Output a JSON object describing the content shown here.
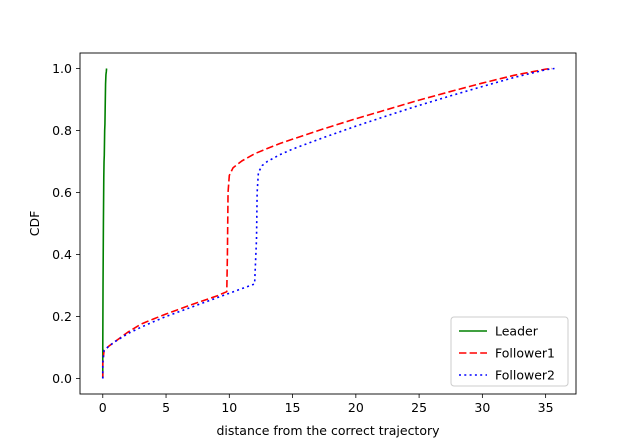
{
  "chart_data": {
    "type": "line",
    "title": "",
    "xlabel": "distance from the correct trajectory",
    "ylabel": "CDF",
    "xlim": [
      -1.8,
      37.4
    ],
    "ylim": [
      -0.05,
      1.05
    ],
    "xticks": [
      0,
      5,
      10,
      15,
      20,
      25,
      30,
      35
    ],
    "yticks": [
      0.0,
      0.2,
      0.4,
      0.6,
      0.8,
      1.0
    ],
    "xtick_labels": [
      "0",
      "5",
      "10",
      "15",
      "20",
      "25",
      "30",
      "35"
    ],
    "ytick_labels": [
      "0.0",
      "0.2",
      "0.4",
      "0.6",
      "0.8",
      "1.0"
    ],
    "grid": false,
    "legend_position": "lower-right",
    "series": [
      {
        "name": "Leader",
        "color": "#008000",
        "dash": "solid",
        "x": [
          0.0,
          0.0,
          0.02,
          0.05,
          0.08,
          0.1,
          0.12,
          0.15,
          0.17,
          0.2,
          0.22,
          0.25,
          0.28,
          0.3
        ],
        "y": [
          0.0,
          0.1,
          0.3,
          0.5,
          0.65,
          0.7,
          0.72,
          0.8,
          0.82,
          0.9,
          0.95,
          0.98,
          0.99,
          1.0
        ]
      },
      {
        "name": "Follower1",
        "color": "#ff0000",
        "dash": "dashed",
        "x": [
          0.0,
          0.0,
          0.1,
          0.5,
          1.0,
          2.0,
          3.0,
          4.0,
          5.0,
          6.0,
          7.0,
          8.0,
          9.0,
          9.8,
          9.85,
          9.9,
          10.0,
          10.3,
          11.0,
          12.0,
          13.0,
          14.0,
          15.0,
          17.5,
          20.0,
          22.5,
          25.0,
          27.5,
          30.0,
          32.5,
          35.0,
          35.5
        ],
        "y": [
          0.0,
          0.05,
          0.09,
          0.105,
          0.12,
          0.15,
          0.175,
          0.192,
          0.208,
          0.223,
          0.238,
          0.252,
          0.266,
          0.28,
          0.4,
          0.6,
          0.655,
          0.68,
          0.702,
          0.725,
          0.742,
          0.758,
          0.772,
          0.806,
          0.838,
          0.868,
          0.898,
          0.926,
          0.953,
          0.978,
          0.998,
          1.0
        ]
      },
      {
        "name": "Follower2",
        "color": "#0000ff",
        "dash": "dotted",
        "x": [
          0.0,
          0.0,
          0.1,
          0.5,
          1.0,
          2.0,
          3.0,
          4.0,
          5.0,
          6.0,
          7.0,
          8.0,
          9.0,
          10.0,
          11.0,
          12.0,
          12.15,
          12.2,
          12.3,
          12.6,
          13.0,
          14.0,
          15.0,
          17.5,
          20.0,
          22.5,
          25.0,
          27.5,
          30.0,
          32.5,
          35.0,
          35.7
        ],
        "y": [
          0.0,
          0.05,
          0.09,
          0.105,
          0.12,
          0.145,
          0.165,
          0.183,
          0.2,
          0.215,
          0.23,
          0.245,
          0.26,
          0.275,
          0.29,
          0.305,
          0.45,
          0.6,
          0.665,
          0.687,
          0.7,
          0.722,
          0.74,
          0.778,
          0.814,
          0.848,
          0.881,
          0.912,
          0.942,
          0.971,
          0.996,
          1.0
        ]
      }
    ]
  }
}
